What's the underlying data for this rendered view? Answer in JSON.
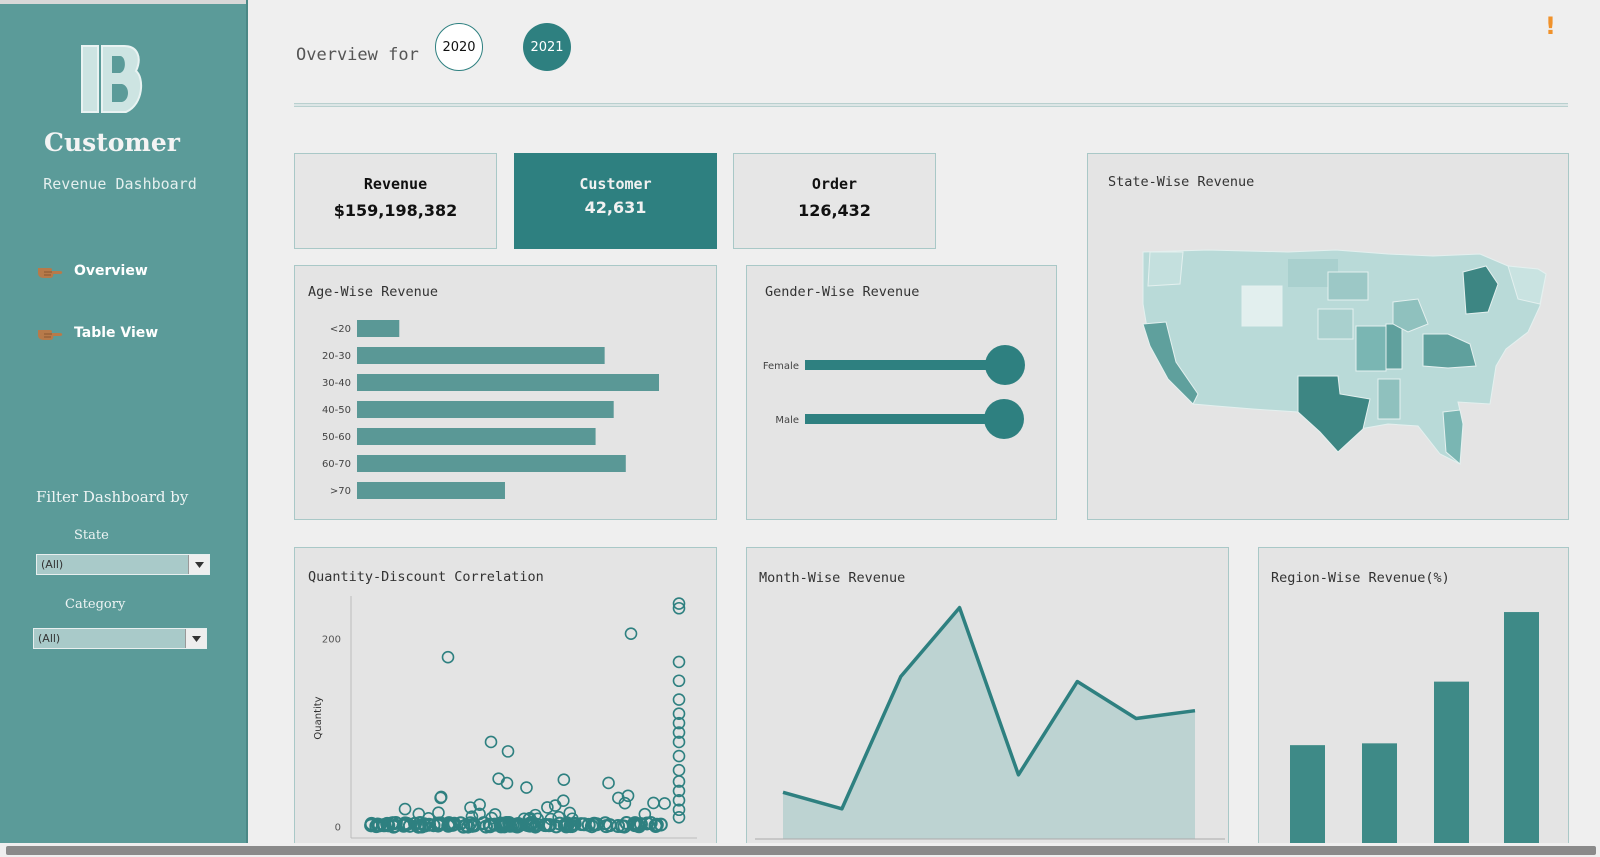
{
  "sidebar": {
    "title": "Customer",
    "subtitle": "Revenue Dashboard",
    "nav": [
      {
        "label": "Overview",
        "icon": "pointing-hand-icon"
      },
      {
        "label": "Table View",
        "icon": "pointing-hand-icon"
      }
    ],
    "filter_title": "Filter Dashboard by",
    "filters": [
      {
        "label": "State",
        "value": "(All)"
      },
      {
        "label": "Category",
        "value": "(All)"
      }
    ]
  },
  "header": {
    "title": "Overview for",
    "years": [
      "2020",
      "2021"
    ],
    "selected_year": "2021",
    "alert_icon": "exclamation-icon"
  },
  "kpis": [
    {
      "label": "Revenue",
      "value": "$159,198,382"
    },
    {
      "label": "Customer",
      "value": "42,631"
    },
    {
      "label": "Order",
      "value": "126,432"
    }
  ],
  "colors": {
    "accent": "#2e8080",
    "bar": "#5a9896",
    "sidebar": "#5b9b99",
    "alert": "#f0922b"
  },
  "panels": {
    "age": "Age-Wise Revenue",
    "gender": "Gender-Wise Revenue",
    "state": "State-Wise Revenue",
    "scatter": "Quantity-Discount Correlation",
    "month": "Month-Wise Revenue",
    "region": "Region-Wise Revenue(%)"
  },
  "chart_data": [
    {
      "type": "bar",
      "orientation": "horizontal",
      "title": "Age-Wise Revenue",
      "categories": [
        "<20",
        "20-30",
        "30-40",
        "40-50",
        "50-60",
        "60-70",
        ">70"
      ],
      "values": [
        14,
        82,
        100,
        85,
        79,
        89,
        49
      ]
    },
    {
      "type": "lollipop",
      "title": "Gender-Wise Revenue",
      "categories": [
        "Female",
        "Male"
      ],
      "values": [
        100,
        99.5
      ]
    },
    {
      "type": "map",
      "title": "State-Wise Revenue",
      "region": "United States"
    },
    {
      "type": "scatter",
      "title": "Quantity-Discount Correlation",
      "ylabel": "Quantity",
      "yticks": [
        0,
        200
      ],
      "ylim": [
        -12,
        245
      ]
    },
    {
      "type": "area",
      "title": "Month-Wise Revenue",
      "values": [
        48,
        31,
        167,
        238,
        66,
        162,
        124,
        132
      ]
    },
    {
      "type": "bar",
      "title": "Region-Wise Revenue(%)",
      "values": [
        17,
        17.3,
        27.5,
        39
      ]
    }
  ]
}
